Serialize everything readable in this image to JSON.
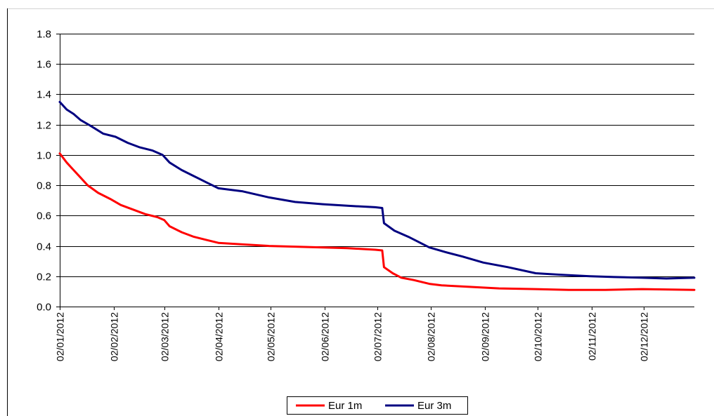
{
  "chart_data": {
    "type": "line",
    "x_ticks": [
      "02/01/2012",
      "02/02/2012",
      "02/03/2012",
      "02/04/2012",
      "02/05/2012",
      "02/06/2012",
      "02/07/2012",
      "02/08/2012",
      "02/09/2012",
      "02/10/2012",
      "02/11/2012",
      "02/12/2012"
    ],
    "y_ticks": [
      "0.0",
      "0.2",
      "0.4",
      "0.6",
      "0.8",
      "1.0",
      "1.2",
      "1.4",
      "1.6",
      "1.8"
    ],
    "ylim": [
      0,
      1.8
    ],
    "xlim": [
      "2012-01-02",
      "2012-12-31"
    ],
    "grid": "horizontal",
    "legend_position": "bottom",
    "series": [
      {
        "name": "Eur 1m",
        "color": "#ff0000",
        "points": [
          [
            "2012-01-02",
            1.01
          ],
          [
            "2012-01-06",
            0.95
          ],
          [
            "2012-01-10",
            0.9
          ],
          [
            "2012-01-14",
            0.85
          ],
          [
            "2012-01-18",
            0.8
          ],
          [
            "2012-01-24",
            0.75
          ],
          [
            "2012-01-31",
            0.71
          ],
          [
            "2012-02-06",
            0.67
          ],
          [
            "2012-02-13",
            0.64
          ],
          [
            "2012-02-20",
            0.61
          ],
          [
            "2012-02-27",
            0.59
          ],
          [
            "2012-03-02",
            0.57
          ],
          [
            "2012-03-05",
            0.53
          ],
          [
            "2012-03-12",
            0.49
          ],
          [
            "2012-03-19",
            0.46
          ],
          [
            "2012-03-26",
            0.44
          ],
          [
            "2012-04-02",
            0.42
          ],
          [
            "2012-04-16",
            0.41
          ],
          [
            "2012-05-01",
            0.4
          ],
          [
            "2012-05-16",
            0.395
          ],
          [
            "2012-06-01",
            0.39
          ],
          [
            "2012-06-15",
            0.385
          ],
          [
            "2012-07-01",
            0.375
          ],
          [
            "2012-07-05",
            0.37
          ],
          [
            "2012-07-06",
            0.26
          ],
          [
            "2012-07-11",
            0.22
          ],
          [
            "2012-07-16",
            0.19
          ],
          [
            "2012-07-23",
            0.175
          ],
          [
            "2012-08-01",
            0.15
          ],
          [
            "2012-08-08",
            0.14
          ],
          [
            "2012-08-24",
            0.13
          ],
          [
            "2012-09-10",
            0.12
          ],
          [
            "2012-10-01",
            0.115
          ],
          [
            "2012-10-20",
            0.11
          ],
          [
            "2012-11-10",
            0.11
          ],
          [
            "2012-12-01",
            0.115
          ],
          [
            "2012-12-31",
            0.11
          ]
        ]
      },
      {
        "name": "Eur 3m",
        "color": "#000080",
        "points": [
          [
            "2012-01-02",
            1.35
          ],
          [
            "2012-01-06",
            1.3
          ],
          [
            "2012-01-10",
            1.27
          ],
          [
            "2012-01-14",
            1.23
          ],
          [
            "2012-01-20",
            1.19
          ],
          [
            "2012-01-27",
            1.14
          ],
          [
            "2012-02-03",
            1.12
          ],
          [
            "2012-02-10",
            1.08
          ],
          [
            "2012-02-17",
            1.05
          ],
          [
            "2012-02-24",
            1.03
          ],
          [
            "2012-03-01",
            1.0
          ],
          [
            "2012-03-05",
            0.95
          ],
          [
            "2012-03-12",
            0.9
          ],
          [
            "2012-03-19",
            0.86
          ],
          [
            "2012-03-26",
            0.82
          ],
          [
            "2012-04-02",
            0.78
          ],
          [
            "2012-04-16",
            0.76
          ],
          [
            "2012-05-01",
            0.72
          ],
          [
            "2012-05-16",
            0.69
          ],
          [
            "2012-06-01",
            0.675
          ],
          [
            "2012-06-15",
            0.665
          ],
          [
            "2012-07-01",
            0.655
          ],
          [
            "2012-07-05",
            0.65
          ],
          [
            "2012-07-06",
            0.55
          ],
          [
            "2012-07-12",
            0.5
          ],
          [
            "2012-07-20",
            0.46
          ],
          [
            "2012-08-01",
            0.39
          ],
          [
            "2012-08-10",
            0.36
          ],
          [
            "2012-08-20",
            0.33
          ],
          [
            "2012-09-01",
            0.29
          ],
          [
            "2012-09-15",
            0.26
          ],
          [
            "2012-10-01",
            0.22
          ],
          [
            "2012-10-15",
            0.21
          ],
          [
            "2012-11-01",
            0.2
          ],
          [
            "2012-11-15",
            0.195
          ],
          [
            "2012-12-01",
            0.19
          ],
          [
            "2012-12-15",
            0.185
          ],
          [
            "2012-12-31",
            0.19
          ]
        ]
      }
    ]
  }
}
